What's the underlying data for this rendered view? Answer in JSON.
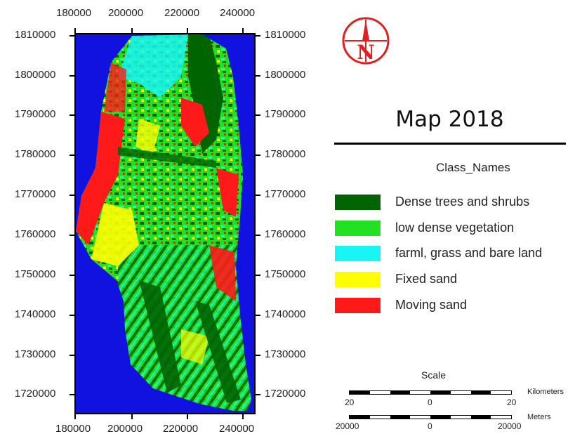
{
  "map": {
    "x_ticks_top": [
      "180000",
      "200000",
      "220000",
      "240000"
    ],
    "x_ticks_bottom": [
      "180000",
      "200000",
      "220000",
      "240000"
    ],
    "y_ticks_left": [
      "1810000",
      "1800000",
      "1790000",
      "1780000",
      "1770000",
      "1760000",
      "1750000",
      "1740000",
      "1730000",
      "1720000"
    ],
    "y_ticks_right": [
      "1810000",
      "1800000",
      "1790000",
      "1780000",
      "1770000",
      "1760000",
      "1750000",
      "1740000",
      "1730000",
      "1720000"
    ],
    "background_color": "#1212e0"
  },
  "north_arrow": {
    "letter": "N",
    "icon": "north-arrow-icon",
    "color": "#e02020"
  },
  "title": "Map 2018",
  "legend": {
    "heading": "Class_Names",
    "items": [
      {
        "label": "Dense trees and shrubs",
        "color": "#006400"
      },
      {
        "label": "low dense vegetation",
        "color": "#22e022"
      },
      {
        "label": "farml, grass and bare land",
        "color": "#19f5f5"
      },
      {
        "label": "Fixed  sand",
        "color": "#ffff00"
      },
      {
        "label": "Moving sand",
        "color": "#ff1a1a"
      }
    ]
  },
  "scale": {
    "title": "Scale",
    "km": {
      "labels": [
        "20",
        "0",
        "20"
      ],
      "unit": "Kilometers"
    },
    "m": {
      "labels": [
        "20000",
        "0",
        "20000"
      ],
      "unit": "Meters"
    }
  }
}
